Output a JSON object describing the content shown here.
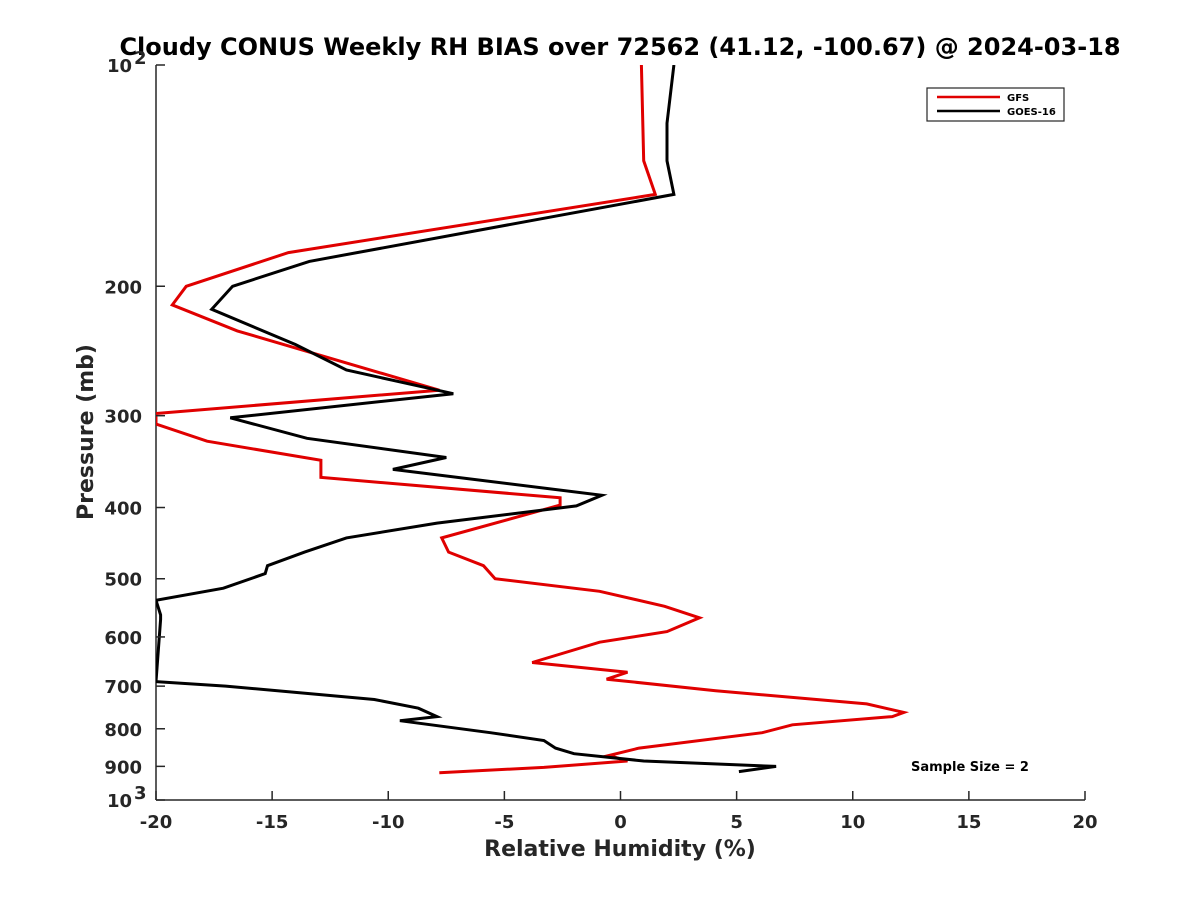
{
  "chart_data": {
    "type": "line",
    "title": "Cloudy CONUS Weekly RH BIAS over 72562 (41.12, -100.67) @ 2024-03-18",
    "xlabel": "Relative Humidity (%)",
    "ylabel": "Pressure (mb)",
    "xlim": [
      -20,
      20
    ],
    "ylim": [
      1000,
      100
    ],
    "yscale": "log",
    "y_reversed": true,
    "xticks": [
      -20,
      -15,
      -10,
      -5,
      0,
      5,
      10,
      15,
      20
    ],
    "xtick_labels": [
      "-20",
      "-15",
      "-10",
      "-5",
      "0",
      "5",
      "10",
      "15",
      "20"
    ],
    "yticks": [
      {
        "value": 100,
        "base": "10",
        "exp": "2"
      },
      {
        "value": 200,
        "base": "200",
        "exp": ""
      },
      {
        "value": 300,
        "base": "300",
        "exp": ""
      },
      {
        "value": 400,
        "base": "400",
        "exp": ""
      },
      {
        "value": 500,
        "base": "500",
        "exp": ""
      },
      {
        "value": 600,
        "base": "600",
        "exp": ""
      },
      {
        "value": 700,
        "base": "700",
        "exp": ""
      },
      {
        "value": 800,
        "base": "800",
        "exp": ""
      },
      {
        "value": 900,
        "base": "900",
        "exp": ""
      },
      {
        "value": 1000,
        "base": "10",
        "exp": "3"
      }
    ],
    "grid": false,
    "legend_position": "top-right",
    "annotation": "Sample Size = 2",
    "series": [
      {
        "name": "GFS",
        "color": "#e00000",
        "points": [
          [
            0.9,
            100
          ],
          [
            1.0,
            135
          ],
          [
            1.5,
            150
          ],
          [
            -14.3,
            180
          ],
          [
            -18.7,
            200
          ],
          [
            -19.3,
            212
          ],
          [
            -16.5,
            230
          ],
          [
            -7.8,
            277
          ],
          [
            -20.0,
            298
          ],
          [
            -20.0,
            308
          ],
          [
            -17.8,
            325
          ],
          [
            -12.9,
            345
          ],
          [
            -12.9,
            364
          ],
          [
            -2.6,
            388
          ],
          [
            -2.6,
            397
          ],
          [
            -7.7,
            440
          ],
          [
            -7.4,
            460
          ],
          [
            -5.9,
            480
          ],
          [
            -5.4,
            500
          ],
          [
            -0.9,
            520
          ],
          [
            1.9,
            545
          ],
          [
            3.4,
            565
          ],
          [
            2.0,
            590
          ],
          [
            -0.9,
            610
          ],
          [
            -3.8,
            650
          ],
          [
            0.3,
            670
          ],
          [
            -0.6,
            685
          ],
          [
            4.1,
            710
          ],
          [
            10.6,
            740
          ],
          [
            12.2,
            760
          ],
          [
            11.7,
            770
          ],
          [
            7.4,
            790
          ],
          [
            6.1,
            810
          ],
          [
            0.8,
            850
          ],
          [
            -0.5,
            870
          ],
          [
            0.3,
            885
          ],
          [
            -3.3,
            903
          ],
          [
            -7.8,
            918
          ]
        ]
      },
      {
        "name": "GOES-16",
        "color": "#000000",
        "points": [
          [
            2.3,
            100
          ],
          [
            2.0,
            120
          ],
          [
            2.0,
            135
          ],
          [
            2.3,
            150
          ],
          [
            -13.4,
            185
          ],
          [
            -16.7,
            200
          ],
          [
            -17.6,
            215
          ],
          [
            -14.0,
            240
          ],
          [
            -11.8,
            260
          ],
          [
            -7.2,
            280
          ],
          [
            -16.8,
            302
          ],
          [
            -13.5,
            322
          ],
          [
            -7.5,
            342
          ],
          [
            -9.8,
            355
          ],
          [
            -0.8,
            385
          ],
          [
            -1.9,
            398
          ],
          [
            -7.9,
            420
          ],
          [
            -11.8,
            440
          ],
          [
            -13.6,
            460
          ],
          [
            -15.2,
            480
          ],
          [
            -15.3,
            492
          ],
          [
            -17.1,
            515
          ],
          [
            -20.0,
            535
          ],
          [
            -19.8,
            560
          ],
          [
            -19.8,
            568
          ],
          [
            -20.0,
            690
          ],
          [
            -17.0,
            700
          ],
          [
            -10.6,
            730
          ],
          [
            -8.7,
            750
          ],
          [
            -7.9,
            770
          ],
          [
            -9.5,
            780
          ],
          [
            -5.6,
            810
          ],
          [
            -3.3,
            830
          ],
          [
            -2.8,
            850
          ],
          [
            -2.0,
            865
          ],
          [
            1.0,
            885
          ],
          [
            6.7,
            900
          ],
          [
            5.1,
            915
          ]
        ]
      }
    ]
  }
}
